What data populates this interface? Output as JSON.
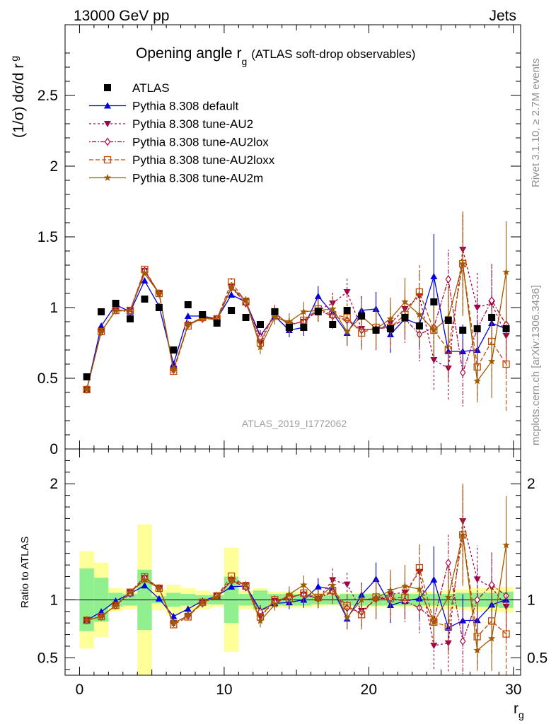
{
  "header": {
    "process": "13000 GeV pp",
    "category": "Jets",
    "title_main": "Opening angle r",
    "title_sub": "g",
    "title_extra": "(ATLAS soft-drop observables)",
    "analysis": "ATLAS_2019_I1772062",
    "rivet": "Rivet 3.1.10, ≥ 2.7M events",
    "mcplots": "mcplots.cern.ch [arXiv:1306.3436]"
  },
  "chart_data": {
    "type": "line",
    "xlabel": "r",
    "xlabel_sub": "g",
    "ylabel": "(1/σ) dσ/d r",
    "ylabel_sub": "g",
    "ratio_ylabel": "Ratio to ATLAS",
    "xlim": [
      -1,
      30.5
    ],
    "ylim": [
      0,
      3
    ],
    "ratio_ylim": [
      0.35,
      2.3
    ],
    "x_ticks": [
      0,
      10,
      20,
      30
    ],
    "x_tick_labels": [
      "0",
      "10",
      "20",
      "30"
    ],
    "y_ticks": [
      0,
      0.5,
      1,
      1.5,
      2,
      2.5
    ],
    "y_tick_labels": [
      "0",
      "0.5",
      "1",
      "1.5",
      "2",
      "2.5"
    ],
    "ratio_ticks": [
      0.5,
      1,
      2
    ],
    "ratio_tick_labels": [
      "0.5",
      "1",
      "2"
    ],
    "x": [
      0.5,
      1.5,
      2.5,
      3.5,
      4.5,
      5.5,
      6.5,
      7.5,
      8.5,
      9.5,
      10.5,
      11.5,
      12.5,
      13.5,
      14.5,
      15.5,
      16.5,
      17.5,
      18.5,
      19.5,
      20.5,
      21.5,
      22.5,
      23.5,
      24.5,
      25.5,
      26.5,
      27.5,
      28.5,
      29.5
    ],
    "data": {
      "name": "ATLAS",
      "values": [
        0.51,
        0.97,
        1.03,
        0.92,
        1.06,
        1.0,
        0.7,
        1.02,
        0.95,
        0.89,
        0.98,
        0.93,
        0.88,
        0.97,
        0.86,
        0.86,
        0.97,
        0.88,
        0.98,
        0.94,
        0.84,
        0.85,
        0.93,
        0.87,
        1.04,
        0.91,
        0.84,
        0.85,
        0.93,
        0.85
      ],
      "band_inner": [
        0.27,
        0.19,
        0.06,
        0.05,
        0.26,
        0.03,
        0.06,
        0.05,
        0.04,
        0.04,
        0.2,
        0.05,
        0.08,
        0.05,
        0.05,
        0.05,
        0.04,
        0.04,
        0.05,
        0.05,
        0.05,
        0.05,
        0.05,
        0.05,
        0.05,
        0.05,
        0.06,
        0.06,
        0.06,
        0.07
      ],
      "band_outer": [
        0.42,
        0.32,
        0.1,
        0.08,
        0.65,
        0.09,
        0.13,
        0.1,
        0.08,
        0.06,
        0.45,
        0.08,
        0.1,
        0.07,
        0.07,
        0.07,
        0.06,
        0.05,
        0.06,
        0.06,
        0.06,
        0.06,
        0.06,
        0.07,
        0.07,
        0.08,
        0.09,
        0.1,
        0.1,
        0.11
      ]
    },
    "series": [
      {
        "name": "Pythia 8.308 default",
        "color": "#0000e0",
        "dash": "",
        "marker": "triangle-up",
        "values": [
          0.42,
          0.87,
          1.02,
          0.97,
          1.19,
          1.01,
          0.6,
          0.94,
          0.94,
          0.92,
          1.09,
          1.04,
          0.8,
          0.94,
          0.84,
          0.86,
          1.08,
          0.96,
          0.82,
          0.98,
          0.99,
          0.81,
          0.92,
          0.88,
          1.22,
          0.69,
          0.69,
          0.7,
          0.89,
          0.85
        ],
        "errors": [
          0.01,
          0.01,
          0.01,
          0.01,
          0.01,
          0.01,
          0.01,
          0.01,
          0.02,
          0.02,
          0.02,
          0.03,
          0.04,
          0.04,
          0.05,
          0.06,
          0.07,
          0.08,
          0.09,
          0.1,
          0.12,
          0.13,
          0.14,
          0.16,
          0.3,
          0.18,
          0.19,
          0.2,
          0.2,
          0.21
        ]
      },
      {
        "name": "Pythia 8.308 tune-AU2",
        "color": "#a0004a",
        "dash": "3,3",
        "marker": "triangle-down",
        "values": [
          0.42,
          0.83,
          0.98,
          0.98,
          1.26,
          1.1,
          0.56,
          0.88,
          0.93,
          0.92,
          1.15,
          1.05,
          0.75,
          0.96,
          0.88,
          0.9,
          0.98,
          1.03,
          1.11,
          0.85,
          0.84,
          0.89,
          0.99,
          1.08,
          0.63,
          0.57,
          1.41,
          1.0,
          1.03,
          0.8
        ],
        "errors": [
          0.01,
          0.01,
          0.01,
          0.01,
          0.01,
          0.01,
          0.01,
          0.02,
          0.02,
          0.02,
          0.03,
          0.03,
          0.05,
          0.05,
          0.06,
          0.07,
          0.08,
          0.09,
          0.1,
          0.12,
          0.14,
          0.15,
          0.17,
          0.19,
          0.21,
          0.22,
          0.25,
          0.25,
          0.26,
          0.27
        ]
      },
      {
        "name": "Pythia 8.308 tune-AU2lox",
        "color": "#a8104a",
        "dash": "2,2,6,2",
        "marker": "diamond",
        "values": [
          0.42,
          0.83,
          0.98,
          0.97,
          1.26,
          1.1,
          0.56,
          0.88,
          0.92,
          0.92,
          1.14,
          1.03,
          0.79,
          0.95,
          0.88,
          0.9,
          0.98,
          0.94,
          0.91,
          0.84,
          0.85,
          0.86,
          0.92,
          0.81,
          0.86,
          1.2,
          0.54,
          0.85,
          1.05,
          0.88
        ],
        "errors": [
          0.01,
          0.01,
          0.01,
          0.01,
          0.01,
          0.01,
          0.01,
          0.02,
          0.02,
          0.02,
          0.03,
          0.03,
          0.05,
          0.05,
          0.06,
          0.07,
          0.08,
          0.09,
          0.1,
          0.12,
          0.14,
          0.15,
          0.17,
          0.19,
          0.2,
          0.22,
          0.24,
          0.25,
          0.26,
          0.27
        ]
      },
      {
        "name": "Pythia 8.308 tune-AU2loxx",
        "color": "#c04a00",
        "dash": "6,3",
        "marker": "square-open",
        "values": [
          0.42,
          0.83,
          0.98,
          0.98,
          1.27,
          1.1,
          0.55,
          0.87,
          0.93,
          0.92,
          1.18,
          1.04,
          0.75,
          0.97,
          0.87,
          0.91,
          0.99,
          0.95,
          0.93,
          0.82,
          0.86,
          0.86,
          0.95,
          1.11,
          0.84,
          0.7,
          1.31,
          0.58,
          0.76,
          0.6
        ],
        "errors": [
          0.01,
          0.01,
          0.01,
          0.01,
          0.01,
          0.01,
          0.01,
          0.02,
          0.02,
          0.02,
          0.03,
          0.03,
          0.05,
          0.05,
          0.06,
          0.07,
          0.08,
          0.09,
          0.1,
          0.12,
          0.14,
          0.15,
          0.17,
          0.19,
          0.2,
          0.22,
          0.35,
          0.25,
          0.26,
          0.33
        ]
      },
      {
        "name": "Pythia 8.308 tune-AU2m",
        "color": "#a05a00",
        "dash": "",
        "marker": "star",
        "values": [
          0.42,
          0.83,
          0.98,
          0.98,
          1.24,
          1.1,
          0.56,
          0.88,
          0.93,
          0.91,
          1.14,
          1.05,
          0.72,
          0.93,
          0.9,
          0.97,
          0.98,
          0.99,
          0.83,
          0.94,
          0.85,
          0.92,
          1.04,
          0.95,
          0.84,
          0.93,
          1.31,
          0.48,
          0.62,
          1.25
        ],
        "errors": [
          0.01,
          0.01,
          0.01,
          0.01,
          0.01,
          0.01,
          0.01,
          0.02,
          0.02,
          0.02,
          0.03,
          0.03,
          0.05,
          0.05,
          0.06,
          0.07,
          0.08,
          0.09,
          0.1,
          0.12,
          0.14,
          0.15,
          0.17,
          0.19,
          0.2,
          0.22,
          0.37,
          0.13,
          0.26,
          0.36
        ]
      }
    ]
  }
}
